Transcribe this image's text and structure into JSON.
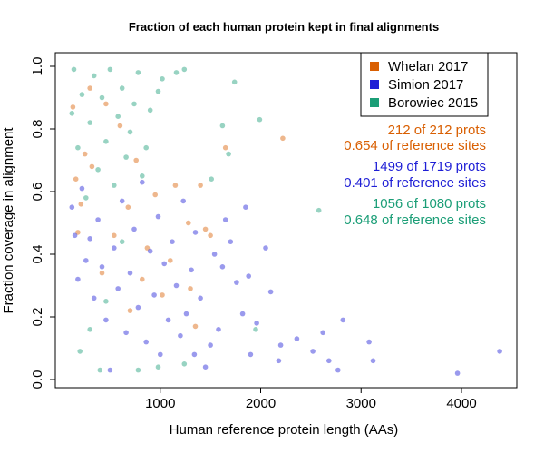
{
  "chart_data": {
    "type": "scatter",
    "title": "Fraction of each human protein kept in final alignments",
    "xlabel": "Human reference protein length (AAs)",
    "ylabel": "Fraction coverage in alignment",
    "xlim": [
      0,
      4500
    ],
    "ylim": [
      0,
      1.0
    ],
    "xticks": [
      1000,
      2000,
      3000,
      4000
    ],
    "yticks": [
      0.0,
      0.2,
      0.4,
      0.6,
      0.8,
      1.0
    ],
    "xtick_labels": [
      "1000",
      "2000",
      "3000",
      "4000"
    ],
    "ytick_labels": [
      "0.0",
      "0.2",
      "0.4",
      "0.6",
      "0.8",
      "1.0"
    ],
    "legend": {
      "position": "top-right",
      "entries": [
        {
          "label": "Whelan 2017",
          "color": "#d95f02"
        },
        {
          "label": "Simion 2017",
          "color": "#1f1fd6"
        },
        {
          "label": "Borowiec 2015",
          "color": "#1b9e77"
        }
      ]
    },
    "annotations": [
      {
        "text": "212 of 212 prots",
        "color": "#d95f02"
      },
      {
        "text": "0.654 of reference sites",
        "color": "#d95f02"
      },
      {
        "text": "1499 of 1719 prots",
        "color": "#1f1fd6"
      },
      {
        "text": "0.401 of reference sites",
        "color": "#1f1fd6"
      },
      {
        "text": "1056 of 1080 prots",
        "color": "#1b9e77"
      },
      {
        "text": "0.648 of reference sites",
        "color": "#1b9e77"
      }
    ],
    "series": [
      {
        "name": "Whelan 2017",
        "color": "#d95f02",
        "points": [
          [
            1400,
            0.62
          ],
          [
            1450,
            0.48
          ],
          [
            1500,
            0.46
          ],
          [
            1650,
            0.74
          ],
          [
            2220,
            0.77
          ],
          [
            1300,
            0.29
          ],
          [
            1350,
            0.17
          ],
          [
            1100,
            0.38
          ],
          [
            1280,
            0.5
          ],
          [
            950,
            0.59
          ],
          [
            870,
            0.42
          ],
          [
            760,
            0.7
          ],
          [
            680,
            0.55
          ],
          [
            600,
            0.81
          ],
          [
            540,
            0.46
          ],
          [
            420,
            0.34
          ],
          [
            300,
            0.93
          ],
          [
            250,
            0.72
          ],
          [
            210,
            0.56
          ],
          [
            160,
            0.64
          ],
          [
            130,
            0.87
          ],
          [
            180,
            0.47
          ],
          [
            320,
            0.68
          ],
          [
            460,
            0.88
          ],
          [
            820,
            0.32
          ],
          [
            1020,
            0.27
          ],
          [
            1150,
            0.62
          ],
          [
            700,
            0.22
          ]
        ]
      },
      {
        "name": "Simion 2017",
        "color": "#1f1fd6",
        "points": [
          [
            4380,
            0.09
          ],
          [
            3960,
            0.02
          ],
          [
            3120,
            0.06
          ],
          [
            3080,
            0.12
          ],
          [
            2770,
            0.03
          ],
          [
            2820,
            0.19
          ],
          [
            2620,
            0.15
          ],
          [
            2680,
            0.06
          ],
          [
            2520,
            0.09
          ],
          [
            2360,
            0.13
          ],
          [
            2200,
            0.11
          ],
          [
            2180,
            0.06
          ],
          [
            2050,
            0.42
          ],
          [
            2100,
            0.28
          ],
          [
            1960,
            0.18
          ],
          [
            1900,
            0.08
          ],
          [
            1880,
            0.33
          ],
          [
            1820,
            0.21
          ],
          [
            1760,
            0.31
          ],
          [
            1700,
            0.44
          ],
          [
            1620,
            0.36
          ],
          [
            1580,
            0.16
          ],
          [
            1540,
            0.4
          ],
          [
            1500,
            0.11
          ],
          [
            1450,
            0.04
          ],
          [
            1400,
            0.26
          ],
          [
            1340,
            0.08
          ],
          [
            1310,
            0.35
          ],
          [
            1260,
            0.21
          ],
          [
            1230,
            0.57
          ],
          [
            1200,
            0.14
          ],
          [
            1160,
            0.3
          ],
          [
            1120,
            0.44
          ],
          [
            1080,
            0.19
          ],
          [
            1040,
            0.37
          ],
          [
            1000,
            0.08
          ],
          [
            980,
            0.52
          ],
          [
            940,
            0.27
          ],
          [
            900,
            0.41
          ],
          [
            860,
            0.12
          ],
          [
            820,
            0.63
          ],
          [
            780,
            0.23
          ],
          [
            740,
            0.48
          ],
          [
            700,
            0.34
          ],
          [
            660,
            0.15
          ],
          [
            620,
            0.57
          ],
          [
            580,
            0.29
          ],
          [
            540,
            0.42
          ],
          [
            500,
            0.03
          ],
          [
            460,
            0.19
          ],
          [
            420,
            0.36
          ],
          [
            380,
            0.51
          ],
          [
            340,
            0.26
          ],
          [
            300,
            0.45
          ],
          [
            260,
            0.38
          ],
          [
            220,
            0.61
          ],
          [
            180,
            0.32
          ],
          [
            150,
            0.46
          ],
          [
            120,
            0.55
          ],
          [
            1850,
            0.55
          ],
          [
            1650,
            0.51
          ],
          [
            1350,
            0.47
          ]
        ]
      },
      {
        "name": "Borowiec 2015",
        "color": "#1b9e77",
        "points": [
          [
            2580,
            0.54
          ],
          [
            1990,
            0.83
          ],
          [
            1740,
            0.95
          ],
          [
            1620,
            0.81
          ],
          [
            1240,
            0.99
          ],
          [
            1160,
            0.98
          ],
          [
            1020,
            0.96
          ],
          [
            980,
            0.92
          ],
          [
            900,
            0.86
          ],
          [
            860,
            0.74
          ],
          [
            820,
            0.65
          ],
          [
            780,
            0.98
          ],
          [
            740,
            0.88
          ],
          [
            700,
            0.79
          ],
          [
            660,
            0.71
          ],
          [
            620,
            0.93
          ],
          [
            580,
            0.84
          ],
          [
            540,
            0.62
          ],
          [
            500,
            0.99
          ],
          [
            460,
            0.76
          ],
          [
            420,
            0.9
          ],
          [
            380,
            0.67
          ],
          [
            340,
            0.97
          ],
          [
            300,
            0.82
          ],
          [
            260,
            0.58
          ],
          [
            220,
            0.91
          ],
          [
            180,
            0.74
          ],
          [
            140,
            0.99
          ],
          [
            120,
            0.85
          ],
          [
            1680,
            0.72
          ],
          [
            1510,
            0.64
          ],
          [
            1240,
            0.05
          ],
          [
            980,
            0.04
          ],
          [
            780,
            0.03
          ],
          [
            400,
            0.03
          ],
          [
            620,
            0.44
          ],
          [
            460,
            0.25
          ],
          [
            300,
            0.16
          ],
          [
            200,
            0.09
          ],
          [
            1950,
            0.16
          ]
        ]
      }
    ]
  }
}
